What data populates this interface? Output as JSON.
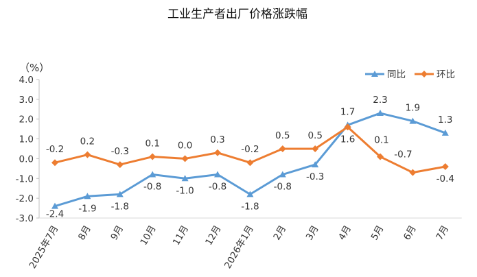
{
  "chart_data": {
    "type": "line",
    "title": "工业生产者出厂价格涨跌幅",
    "ylabel": "（%）",
    "xlabel": "",
    "ylim": [
      -3.0,
      4.0
    ],
    "yticks": [
      "4.0",
      "3.0",
      "2.0",
      "1.0",
      "0.0",
      "-1.0",
      "-2.0",
      "-3.0"
    ],
    "ytick_values": [
      4.0,
      3.0,
      2.0,
      1.0,
      0.0,
      -1.0,
      -2.0,
      -3.0
    ],
    "categories": [
      "2025年7月",
      "8月",
      "9月",
      "10月",
      "11月",
      "12月",
      "2026年1月",
      "2月",
      "3月",
      "4月",
      "5月",
      "6月",
      "7月"
    ],
    "grid": false,
    "legend_position": "top-right",
    "series": [
      {
        "name": "同比",
        "color": "#5B9BD5",
        "marker": "triangle",
        "values": [
          -2.4,
          -1.9,
          -1.8,
          -0.8,
          -1.0,
          -0.8,
          -1.8,
          -0.8,
          -0.3,
          1.7,
          2.3,
          1.9,
          1.3
        ],
        "labels": [
          "-2.4",
          "-1.9",
          "-1.8",
          "-0.8",
          "-1.0",
          "-0.8",
          "-1.8",
          "-0.8",
          "-0.3",
          "1.7",
          "2.3",
          "1.9",
          "1.3"
        ]
      },
      {
        "name": "环比",
        "color": "#ED7D31",
        "marker": "diamond",
        "values": [
          -0.2,
          0.2,
          -0.3,
          0.1,
          0.0,
          0.3,
          -0.2,
          0.5,
          0.5,
          1.6,
          0.1,
          -0.7,
          -0.4
        ],
        "labels": [
          "-0.2",
          "0.2",
          "-0.3",
          "0.1",
          "0.0",
          "0.3",
          "-0.2",
          "0.5",
          "0.5",
          "1.6",
          "0.1",
          "-0.7",
          "-0.4"
        ]
      }
    ]
  }
}
